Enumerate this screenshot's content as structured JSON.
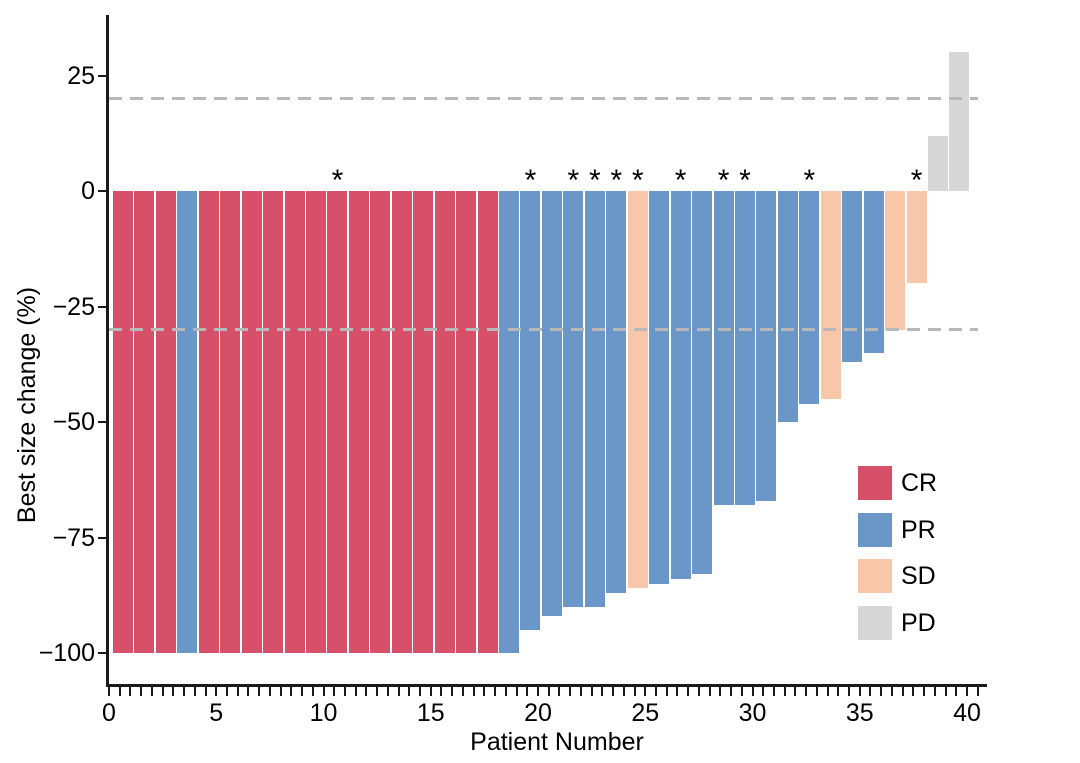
{
  "chart_data": {
    "type": "bar",
    "subtype": "waterfall-tumor-response",
    "title": "",
    "xlabel": "Patient Number",
    "ylabel": "Best size change (%)",
    "xlim": [
      0,
      40.5
    ],
    "ylim": [
      -112,
      38
    ],
    "x_ticks": [
      0,
      5,
      10,
      15,
      20,
      25,
      30,
      35,
      40
    ],
    "x_minor_tick_step": 0.5,
    "y_ticks": [
      25,
      0,
      -25,
      -50,
      -75,
      -100
    ],
    "y_tick_labels": [
      "25",
      "0",
      "−25",
      "−50",
      "−75",
      "−100"
    ],
    "grid": false,
    "reference_lines": [
      20,
      -30
    ],
    "reference_line_style": "dashed",
    "reference_line_color": "#b8b8b8",
    "annotation_symbol": "*",
    "legend": {
      "position": "right-middle",
      "entries": [
        {
          "label": "CR",
          "color": "#d6506a"
        },
        {
          "label": "PR",
          "color": "#6b96c8"
        },
        {
          "label": "SD",
          "color": "#f8c7aa"
        },
        {
          "label": "PD",
          "color": "#d7d7d7"
        }
      ]
    },
    "patients": [
      {
        "n": 1,
        "response": "CR",
        "value": -100,
        "annotated": false
      },
      {
        "n": 2,
        "response": "CR",
        "value": -100,
        "annotated": false
      },
      {
        "n": 3,
        "response": "CR",
        "value": -100,
        "annotated": false
      },
      {
        "n": 4,
        "response": "PR",
        "value": -100,
        "annotated": false
      },
      {
        "n": 5,
        "response": "CR",
        "value": -100,
        "annotated": false
      },
      {
        "n": 6,
        "response": "CR",
        "value": -100,
        "annotated": false
      },
      {
        "n": 7,
        "response": "CR",
        "value": -100,
        "annotated": false
      },
      {
        "n": 8,
        "response": "CR",
        "value": -100,
        "annotated": false
      },
      {
        "n": 9,
        "response": "CR",
        "value": -100,
        "annotated": false
      },
      {
        "n": 10,
        "response": "CR",
        "value": -100,
        "annotated": false
      },
      {
        "n": 11,
        "response": "CR",
        "value": -100,
        "annotated": true
      },
      {
        "n": 12,
        "response": "CR",
        "value": -100,
        "annotated": false
      },
      {
        "n": 13,
        "response": "CR",
        "value": -100,
        "annotated": false
      },
      {
        "n": 14,
        "response": "CR",
        "value": -100,
        "annotated": false
      },
      {
        "n": 15,
        "response": "CR",
        "value": -100,
        "annotated": false
      },
      {
        "n": 16,
        "response": "CR",
        "value": -100,
        "annotated": false
      },
      {
        "n": 17,
        "response": "CR",
        "value": -100,
        "annotated": false
      },
      {
        "n": 18,
        "response": "CR",
        "value": -100,
        "annotated": false
      },
      {
        "n": 19,
        "response": "PR",
        "value": -100,
        "annotated": false
      },
      {
        "n": 20,
        "response": "PR",
        "value": -95,
        "annotated": true
      },
      {
        "n": 21,
        "response": "PR",
        "value": -92,
        "annotated": false
      },
      {
        "n": 22,
        "response": "PR",
        "value": -90,
        "annotated": true
      },
      {
        "n": 23,
        "response": "PR",
        "value": -90,
        "annotated": true
      },
      {
        "n": 24,
        "response": "PR",
        "value": -87,
        "annotated": true
      },
      {
        "n": 25,
        "response": "SD",
        "value": -86,
        "annotated": true
      },
      {
        "n": 26,
        "response": "PR",
        "value": -85,
        "annotated": false
      },
      {
        "n": 27,
        "response": "PR",
        "value": -84,
        "annotated": true
      },
      {
        "n": 28,
        "response": "PR",
        "value": -83,
        "annotated": false
      },
      {
        "n": 29,
        "response": "PR",
        "value": -68,
        "annotated": true
      },
      {
        "n": 30,
        "response": "PR",
        "value": -68,
        "annotated": true
      },
      {
        "n": 31,
        "response": "PR",
        "value": -67,
        "annotated": false
      },
      {
        "n": 32,
        "response": "PR",
        "value": -50,
        "annotated": false
      },
      {
        "n": 33,
        "response": "PR",
        "value": -46,
        "annotated": true
      },
      {
        "n": 34,
        "response": "SD",
        "value": -45,
        "annotated": false
      },
      {
        "n": 35,
        "response": "PR",
        "value": -37,
        "annotated": false
      },
      {
        "n": 36,
        "response": "PR",
        "value": -35,
        "annotated": false
      },
      {
        "n": 37,
        "response": "SD",
        "value": -30,
        "annotated": false
      },
      {
        "n": 38,
        "response": "SD",
        "value": -20,
        "annotated": true
      },
      {
        "n": 39,
        "response": "PD",
        "value": 12,
        "annotated": false
      },
      {
        "n": 40,
        "response": "PD",
        "value": 30,
        "annotated": false
      }
    ]
  }
}
